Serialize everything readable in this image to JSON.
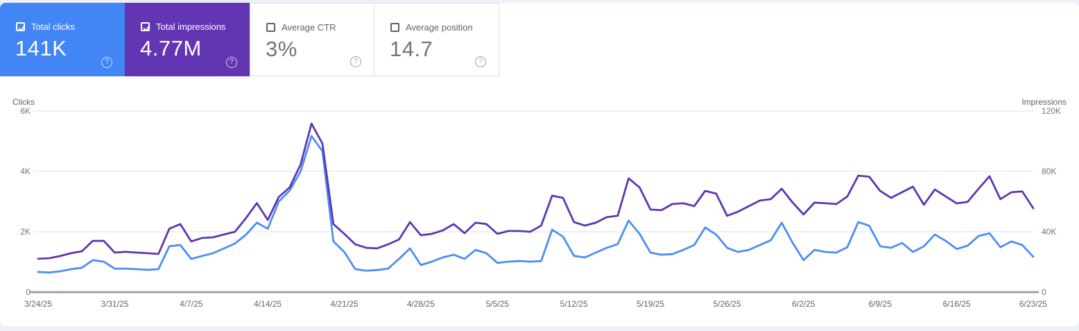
{
  "cards": [
    {
      "label": "Total clicks",
      "value": "141K",
      "checked": true,
      "colored": true,
      "bg": "#4285f4",
      "help_icon": "?"
    },
    {
      "label": "Total impressions",
      "value": "4.77M",
      "checked": true,
      "colored": true,
      "bg": "#6236b2",
      "help_icon": "?"
    },
    {
      "label": "Average CTR",
      "value": "3%",
      "checked": false,
      "colored": false,
      "bg": "#ffffff",
      "help_icon": "?"
    },
    {
      "label": "Average position",
      "value": "14.7",
      "checked": false,
      "colored": false,
      "bg": "#ffffff",
      "help_icon": "?"
    }
  ],
  "chart": {
    "left_axis_title": "Clicks",
    "right_axis_title": "Impressions",
    "left_ticks": [
      "0",
      "2K",
      "4K",
      "6K"
    ],
    "right_ticks": [
      "0",
      "40K",
      "80K",
      "120K"
    ],
    "x_labels": [
      "3/24/25",
      "3/31/25",
      "4/7/25",
      "4/14/25",
      "4/21/25",
      "4/28/25",
      "5/5/25",
      "5/12/25",
      "5/19/25",
      "5/26/25",
      "6/2/25",
      "6/9/25",
      "6/16/25",
      "6/23/25"
    ]
  },
  "chart_data": {
    "type": "line",
    "x": [
      "3/24/25",
      "3/25/25",
      "3/26/25",
      "3/27/25",
      "3/28/25",
      "3/29/25",
      "3/30/25",
      "3/31/25",
      "4/1/25",
      "4/2/25",
      "4/3/25",
      "4/4/25",
      "4/5/25",
      "4/6/25",
      "4/7/25",
      "4/8/25",
      "4/9/25",
      "4/10/25",
      "4/11/25",
      "4/12/25",
      "4/13/25",
      "4/14/25",
      "4/15/25",
      "4/16/25",
      "4/17/25",
      "4/18/25",
      "4/19/25",
      "4/20/25",
      "4/21/25",
      "4/22/25",
      "4/23/25",
      "4/24/25",
      "4/25/25",
      "4/26/25",
      "4/27/25",
      "4/28/25",
      "4/29/25",
      "4/30/25",
      "5/1/25",
      "5/2/25",
      "5/3/25",
      "5/4/25",
      "5/5/25",
      "5/6/25",
      "5/7/25",
      "5/8/25",
      "5/9/25",
      "5/10/25",
      "5/11/25",
      "5/12/25",
      "5/13/25",
      "5/14/25",
      "5/15/25",
      "5/16/25",
      "5/17/25",
      "5/18/25",
      "5/19/25",
      "5/20/25",
      "5/21/25",
      "5/22/25",
      "5/23/25",
      "5/24/25",
      "5/25/25",
      "5/26/25",
      "5/27/25",
      "5/28/25",
      "5/29/25",
      "5/30/25",
      "5/31/25",
      "6/1/25",
      "6/2/25",
      "6/3/25",
      "6/4/25",
      "6/5/25",
      "6/6/25",
      "6/7/25",
      "6/8/25",
      "6/9/25",
      "6/10/25",
      "6/11/25",
      "6/12/25",
      "6/13/25",
      "6/14/25",
      "6/15/25",
      "6/16/25",
      "6/17/25",
      "6/18/25",
      "6/19/25",
      "6/20/25",
      "6/21/25",
      "6/22/25",
      "6/23/25"
    ],
    "series": [
      {
        "name": "Clicks",
        "axis": "left",
        "color": "#4c8df5",
        "values": [
          670,
          650,
          690,
          760,
          810,
          1060,
          1010,
          780,
          780,
          760,
          740,
          760,
          1520,
          1560,
          1100,
          1200,
          1290,
          1450,
          1610,
          1900,
          2300,
          2100,
          3000,
          3360,
          4000,
          5170,
          4670,
          1680,
          1330,
          760,
          710,
          730,
          780,
          1100,
          1450,
          900,
          1010,
          1150,
          1240,
          1100,
          1400,
          1290,
          970,
          1010,
          1030,
          1010,
          1030,
          2070,
          1840,
          1200,
          1150,
          1310,
          1470,
          1590,
          2370,
          1930,
          1310,
          1240,
          1260,
          1400,
          1560,
          2140,
          1910,
          1470,
          1330,
          1400,
          1560,
          1720,
          2300,
          1630,
          1060,
          1400,
          1330,
          1310,
          1490,
          2320,
          2200,
          1520,
          1470,
          1630,
          1330,
          1520,
          1910,
          1700,
          1430,
          1540,
          1860,
          1950,
          1490,
          1680,
          1560,
          1170
        ]
      },
      {
        "name": "Impressions",
        "axis": "right",
        "color": "#5e35b1",
        "values": [
          22100,
          22500,
          23900,
          25800,
          27100,
          34000,
          34000,
          26200,
          26700,
          26200,
          25800,
          25300,
          42000,
          45100,
          33600,
          35900,
          36300,
          38200,
          40000,
          49000,
          59000,
          47800,
          63000,
          69400,
          84600,
          111700,
          98400,
          45100,
          38600,
          31700,
          29400,
          29000,
          31700,
          34900,
          46400,
          37700,
          38600,
          40900,
          45100,
          39100,
          46000,
          45100,
          38600,
          40500,
          40500,
          40000,
          44100,
          63900,
          62500,
          46400,
          44100,
          46000,
          49700,
          50600,
          75400,
          69400,
          54700,
          54300,
          58400,
          58900,
          57000,
          67100,
          65300,
          50600,
          53300,
          57000,
          60700,
          61600,
          68500,
          59300,
          51500,
          59300,
          58900,
          58400,
          63400,
          77200,
          76500,
          67100,
          62500,
          66200,
          69900,
          57900,
          68000,
          63400,
          58800,
          59800,
          68500,
          76800,
          61600,
          66200,
          66700,
          55600
        ]
      }
    ],
    "left_ylim": [
      0,
      6000
    ],
    "right_ylim": [
      0,
      120000
    ],
    "grid": true,
    "legend_position": "none",
    "x_tick_every_days": 7
  }
}
